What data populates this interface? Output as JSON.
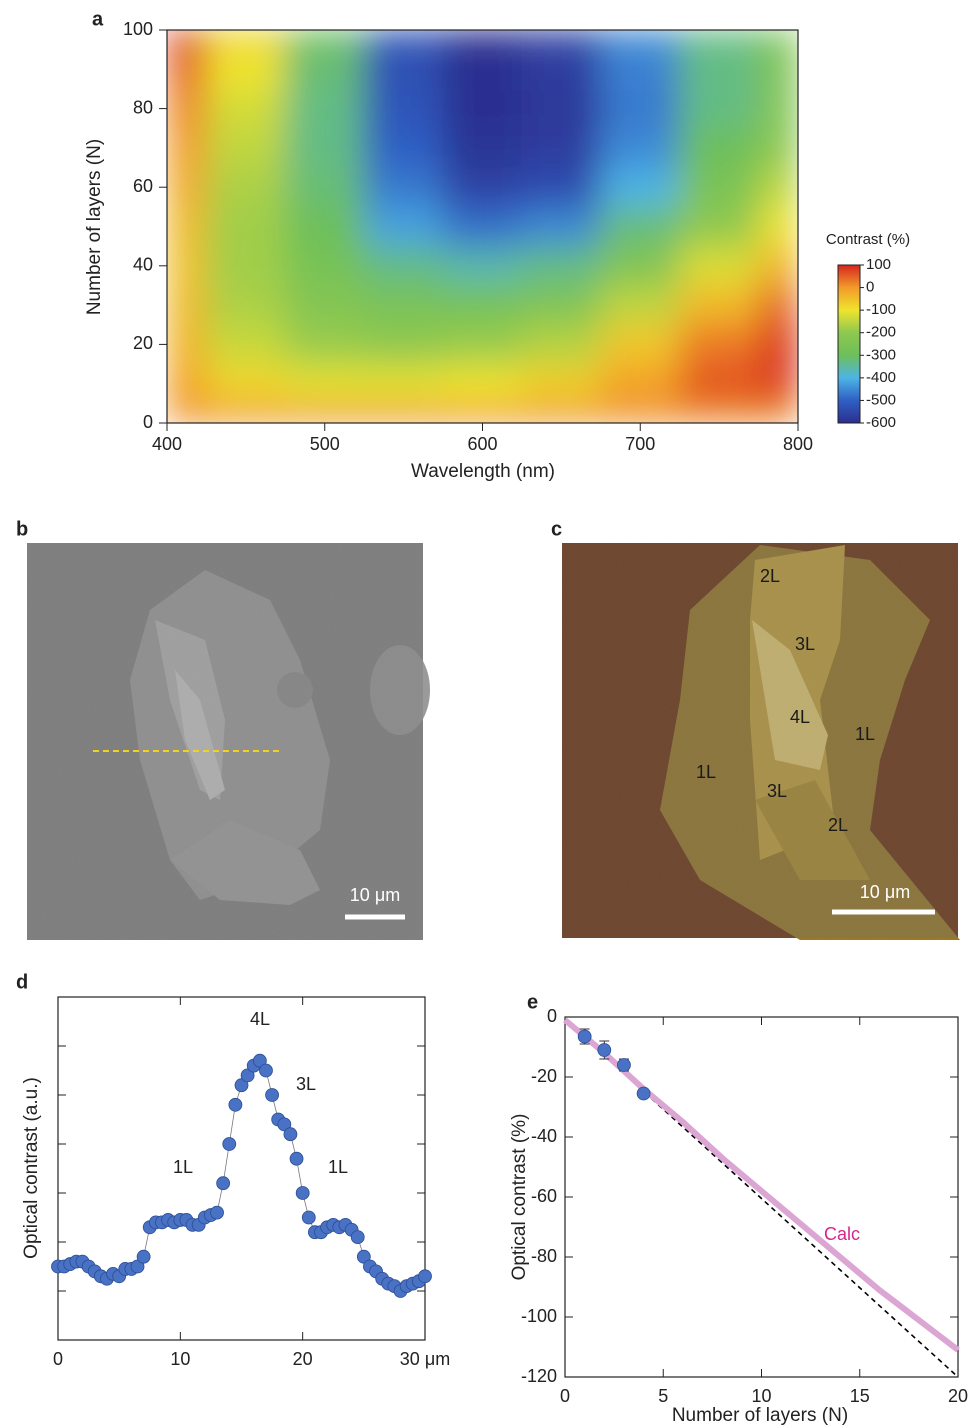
{
  "chart_data": [
    {
      "type": "contour",
      "label": "a",
      "xlabel": "Wavelength (nm)",
      "ylabel": "Number of layers (N)",
      "x": [
        400,
        450,
        500,
        550,
        600,
        650,
        700,
        750,
        800
      ],
      "y": [
        0,
        10,
        20,
        30,
        40,
        50,
        60,
        70,
        80,
        90,
        100
      ],
      "z": [
        [
          10,
          10,
          10,
          10,
          10,
          10,
          10,
          10,
          10
        ],
        [
          -10,
          -80,
          -110,
          -110,
          -100,
          -70,
          -10,
          60,
          80
        ],
        [
          -30,
          -140,
          -190,
          -200,
          -190,
          -160,
          -60,
          30,
          90
        ],
        [
          -40,
          -170,
          -230,
          -260,
          -270,
          -240,
          -150,
          -40,
          50
        ],
        [
          -50,
          -180,
          -270,
          -330,
          -360,
          -330,
          -240,
          -120,
          -30
        ],
        [
          -40,
          -180,
          -300,
          -420,
          -480,
          -450,
          -320,
          -200,
          -100
        ],
        [
          -20,
          -170,
          -320,
          -470,
          -560,
          -540,
          -400,
          -260,
          -150
        ],
        [
          0,
          -150,
          -330,
          -500,
          -590,
          -570,
          -450,
          -300,
          -200
        ],
        [
          20,
          -130,
          -330,
          -520,
          -600,
          -580,
          -470,
          -330,
          -230
        ],
        [
          50,
          -100,
          -320,
          -530,
          -600,
          -570,
          -460,
          -330,
          -240
        ],
        [
          100,
          -80,
          -300,
          -520,
          -600,
          -560,
          -450,
          -330,
          -250
        ]
      ],
      "xlim": [
        400,
        800
      ],
      "xticks": [
        400,
        500,
        600,
        700,
        800
      ],
      "ylim": [
        0,
        100
      ],
      "yticks": [
        0,
        20,
        40,
        60,
        80,
        100
      ],
      "colorbar_label": "Contrast (%)",
      "clim": [
        -600,
        100
      ],
      "cticks": [
        100,
        0,
        -100,
        -200,
        -300,
        -400,
        -500,
        -600
      ],
      "colors": [
        "#d7261e",
        "#f39a2b",
        "#efe42d",
        "#8ec850",
        "#6dbf5a",
        "#4db4e6",
        "#2f5fc4",
        "#2c2f8f"
      ]
    },
    {
      "type": "scatter",
      "label": "d",
      "ylabel": "Optical contrast (a.u.)",
      "annotations": [
        "4L",
        "3L",
        "1L",
        "1L"
      ],
      "series": [
        {
          "color": "#4a72c4",
          "mode": "line+markers",
          "x": [
            0,
            0.5,
            1,
            1.5,
            2,
            2.5,
            3,
            3.5,
            4,
            4.5,
            5,
            5.5,
            6,
            6.5,
            7,
            7.5,
            8,
            8.5,
            9,
            9.5,
            10,
            10.5,
            11,
            11.5,
            12,
            12.5,
            13,
            13.5,
            14,
            14.5,
            15,
            15.5,
            16,
            16.5,
            17,
            17.5,
            18,
            18.5,
            19,
            19.5,
            20,
            20.5,
            21,
            21.5,
            22,
            22.5,
            23,
            23.5,
            24,
            24.5,
            25,
            25.5,
            26,
            26.5,
            27,
            27.5,
            28,
            28.5,
            29,
            29.5,
            30
          ],
          "values": [
            1.5,
            1.5,
            1.55,
            1.6,
            1.6,
            1.5,
            1.4,
            1.3,
            1.25,
            1.35,
            1.3,
            1.45,
            1.45,
            1.5,
            1.7,
            2.3,
            2.4,
            2.4,
            2.45,
            2.4,
            2.45,
            2.45,
            2.35,
            2.35,
            2.5,
            2.55,
            2.6,
            3.2,
            4.0,
            4.8,
            5.2,
            5.4,
            5.6,
            5.7,
            5.5,
            5.0,
            4.5,
            4.4,
            4.2,
            3.7,
            3.0,
            2.5,
            2.2,
            2.2,
            2.3,
            2.35,
            2.3,
            2.35,
            2.25,
            2.1,
            1.7,
            1.5,
            1.4,
            1.25,
            1.15,
            1.1,
            1.0,
            1.1,
            1.15,
            1.2,
            1.3
          ]
        }
      ],
      "xlim": [
        0,
        30
      ],
      "xticks": [
        0,
        10,
        20,
        {
          "value": 30,
          "label": "30 μm"
        }
      ],
      "ylim": [
        0,
        7
      ],
      "yticks": [
        1,
        2,
        3,
        4,
        5,
        6
      ]
    },
    {
      "type": "scatter",
      "label": "e",
      "xlabel": "Number of layers (N)",
      "ylabel": "Optical contrast (%)",
      "series": [
        {
          "color": "#000000",
          "mode": "line",
          "dash": true,
          "x": [
            0,
            20
          ],
          "values": [
            -1,
            -120
          ]
        },
        {
          "name": "Calc",
          "color": "#dba6d3",
          "label_color": "#d4268c",
          "mode": "line",
          "x": [
            0,
            2,
            4,
            6,
            8,
            10,
            12,
            14,
            16,
            18,
            20
          ],
          "values": [
            -1,
            -12,
            -24,
            -35,
            -47,
            -58,
            -69,
            -80,
            -91,
            -101,
            -111
          ]
        },
        {
          "color": "#4a72c4",
          "mode": "markers",
          "x": [
            1,
            2,
            3,
            4
          ],
          "values": [
            -6.5,
            -11,
            -16,
            -25.5
          ],
          "errors": [
            2.5,
            3,
            2,
            1
          ]
        }
      ],
      "xlim": [
        0,
        20
      ],
      "xticks": [
        0,
        5,
        10,
        15,
        20
      ],
      "ylim": [
        -120,
        0
      ],
      "yticks": [
        0,
        -20,
        -40,
        -60,
        -80,
        -100,
        -120
      ]
    }
  ],
  "images": [
    {
      "label": "b",
      "scale_bar": "10 μm"
    },
    {
      "label": "c",
      "scale_bar": "10 μm",
      "annotations": [
        "2L",
        "3L",
        "4L",
        "1L",
        "1L",
        "3L",
        "2L"
      ]
    }
  ]
}
